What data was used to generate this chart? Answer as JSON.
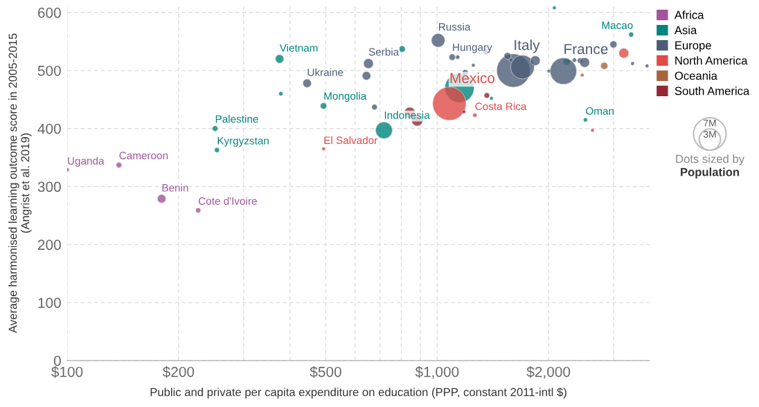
{
  "chart_data": {
    "type": "bubble",
    "xlabel": "Public and private per capita expenditure on education (PPP, constant 2011-intl $)",
    "ylabel": "Average harmonised learning outcome score in 2005-2015\n(Angrist et al. 2019)",
    "log": "x",
    "xlim": [
      100,
      3750
    ],
    "xticks": [
      {
        "value": 100,
        "label": "$100"
      },
      {
        "value": 200,
        "label": "$200"
      },
      {
        "value": 300,
        "label": null
      },
      {
        "value": 400,
        "label": null
      },
      {
        "value": 500,
        "label": "$500"
      },
      {
        "value": 600,
        "label": null
      },
      {
        "value": 700,
        "label": null
      },
      {
        "value": 800,
        "label": null
      },
      {
        "value": 900,
        "label": null
      },
      {
        "value": 1000,
        "label": "$1,000"
      },
      {
        "value": 2000,
        "label": "$2,000"
      },
      {
        "value": 3000,
        "label": null
      }
    ],
    "ylim": [
      0,
      612
    ],
    "yticks": [
      0,
      100,
      200,
      300,
      400,
      500,
      600
    ],
    "grid": true,
    "legend": "top right",
    "size_legend": [
      {
        "value": 7,
        "label": "7M"
      },
      {
        "value": 3,
        "label": "3M"
      }
    ],
    "series": [
      {
        "name": "Africa",
        "color": "#a2559c",
        "x": [
          100,
          138,
          180,
          226
        ],
        "values": [
          329,
          337,
          279,
          259
        ],
        "sizes": [
          0.11,
          0.2,
          0.46,
          0.16
        ]
      },
      {
        "name": "Asia",
        "color": "#00847e",
        "x": [
          375,
          378,
          493,
          251,
          254,
          718,
          804,
          1149,
          1402,
          2073,
          2239,
          2516,
          3344
        ],
        "values": [
          520,
          460,
          439,
          400,
          363,
          397,
          537,
          470,
          452,
          608,
          515,
          415,
          562
        ],
        "sizes": [
          0.46,
          0.11,
          0.26,
          0.2,
          0.16,
          1.83,
          0.26,
          5.6,
          0.08,
          0.08,
          0.32,
          0.11,
          0.16
        ]
      },
      {
        "name": "Europe",
        "color": "#4c5c78",
        "x": [
          1006,
          652,
          445,
          644,
          677,
          1098,
          1136,
          1353,
          1252,
          1190,
          1607,
          1700,
          1549,
          1584,
          1841,
          2005,
          2193,
          2349,
          2434,
          2503,
          2807,
          2994,
          3373,
          3691
        ],
        "values": [
          552,
          512,
          478,
          491,
          437,
          523,
          523,
          533,
          509,
          496,
          500,
          506,
          525,
          518,
          517,
          499,
          499,
          518,
          517,
          514,
          530,
          545,
          512,
          508
        ],
        "sizes": [
          1.19,
          0.62,
          0.46,
          0.46,
          0.2,
          0.26,
          0.11,
          0.2,
          0.08,
          0.26,
          7.3,
          3.7,
          0.32,
          0.11,
          0.62,
          0.08,
          4.6,
          0.11,
          0.2,
          0.62,
          0.11,
          0.32,
          0.08,
          0.08
        ]
      },
      {
        "name": "North America",
        "color": "#e04a47",
        "x": [
          1079,
          1264,
          493,
          3194,
          2629
        ],
        "values": [
          443,
          423,
          365,
          530,
          397
        ],
        "sizes": [
          7.3,
          0.11,
          0.08,
          0.62,
          0.08
        ]
      },
      {
        "name": "Oceania",
        "color": "#a8643c",
        "x": [
          2828,
          2465
        ],
        "values": [
          508,
          492
        ],
        "sizes": [
          0.32,
          0.08
        ]
      },
      {
        "name": "South America",
        "color": "#932834",
        "x": [
          843,
          883,
          1181,
          1362
        ],
        "values": [
          427,
          414,
          429,
          457
        ],
        "sizes": [
          0.81,
          0.81,
          0.08,
          0.2
        ]
      }
    ],
    "annotations": [
      {
        "text": "Uganda",
        "x": 100,
        "y": 329
      },
      {
        "text": "Cameroon",
        "x": 138,
        "y": 337
      },
      {
        "text": "Benin",
        "x": 180,
        "y": 279
      },
      {
        "text": "Cote d'Ivoire",
        "x": 226,
        "y": 259
      },
      {
        "text": "Vietnam",
        "x": 375,
        "y": 520
      },
      {
        "text": "Mongolia",
        "x": 493,
        "y": 439
      },
      {
        "text": "Palestine",
        "x": 251,
        "y": 400
      },
      {
        "text": "Kyrgyzstan",
        "x": 254,
        "y": 363
      },
      {
        "text": "Indonesia",
        "x": 718,
        "y": 397
      },
      {
        "text": "Oman",
        "x": 2516,
        "y": 415
      },
      {
        "text": "Macao",
        "x": 3344,
        "y": 562
      },
      {
        "text": "Russia",
        "x": 1006,
        "y": 552
      },
      {
        "text": "Serbia",
        "x": 652,
        "y": 512
      },
      {
        "text": "Ukraine",
        "x": 445,
        "y": 478
      },
      {
        "text": "Hungary",
        "x": 1098,
        "y": 523
      },
      {
        "text": "Italy",
        "x": 1607,
        "y": 500
      },
      {
        "text": "France",
        "x": 2193,
        "y": 499
      },
      {
        "text": "Mexico",
        "x": 1079,
        "y": 443
      },
      {
        "text": "Costa Rica",
        "x": 1264,
        "y": 423
      },
      {
        "text": "El Salvador",
        "x": 493,
        "y": 365
      },
      "Dots sized by",
      "Population"
    ]
  }
}
